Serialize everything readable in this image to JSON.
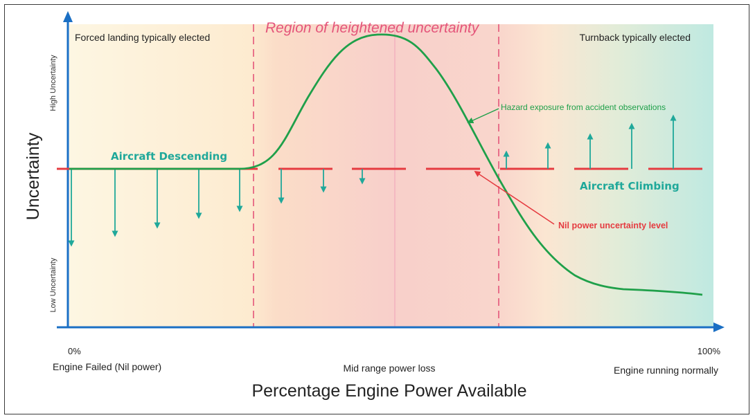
{
  "axes": {
    "y_title": "Uncertainty",
    "y_high_label": "High Uncertainty",
    "y_low_label": "Low Uncertainty",
    "x_title": "Percentage Engine Power Available",
    "x_min_tick": "0%",
    "x_max_tick": "100%",
    "x_left_label": "Engine Failed (Nil power)",
    "x_mid_label": "Mid range power loss",
    "x_right_label": "Engine running normally"
  },
  "regions": {
    "left_label": "Forced landing typically elected",
    "middle_label": "Region of heightened uncertainty",
    "right_label": "Turnback typically elected"
  },
  "annotations": {
    "descending": "Aircraft Descending",
    "climbing": "Aircraft Climbing",
    "hazard": "Hazard exposure from accident observations",
    "nil_power": "Nil power uncertainty level"
  },
  "colors": {
    "curve": "#1fa04a",
    "nil_line": "#e53b40",
    "arrows": "#1fa89a",
    "divider": "#e4557a",
    "axis": "#1a6fc4",
    "region_left": "#fdf2d8",
    "region_mid": "#f8cfc8",
    "region_right": "#c8ece4"
  }
}
